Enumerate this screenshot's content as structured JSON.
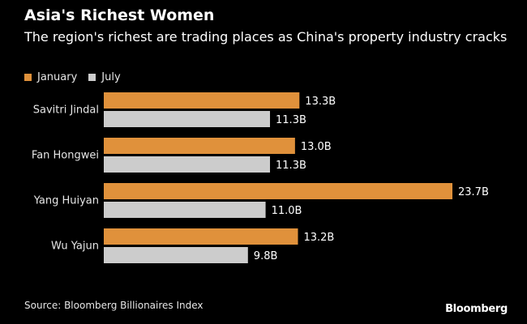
{
  "title": "Asia's Richest Women",
  "subtitle": "The region's richest are trading places as China's property industry cracks",
  "source": "Source: Bloomberg Billionaires Index",
  "brand": "Bloomberg",
  "colors": {
    "background": "#000000",
    "january": "#e0913b",
    "july": "#cccccc",
    "text": "#ffffff"
  },
  "chart_data": {
    "type": "bar",
    "orientation": "horizontal",
    "title": "Asia's Richest Women",
    "subtitle": "The region's richest are trading places as China's property industry cracks",
    "categories": [
      "Savitri Jindal",
      "Fan Hongwei",
      "Yang Huiyan",
      "Wu Yajun"
    ],
    "series": [
      {
        "name": "January",
        "values": [
          13.3,
          13.0,
          23.7,
          13.2
        ],
        "labels": [
          "13.3B",
          "13.0B",
          "23.7B",
          "13.2B"
        ]
      },
      {
        "name": "July",
        "values": [
          11.3,
          11.3,
          11.0,
          9.8
        ],
        "labels": [
          "11.3B",
          "11.3B",
          "11.0B",
          "9.8B"
        ]
      }
    ],
    "xlim": [
      0,
      23.7
    ],
    "grid": false,
    "legend_position": "top-left"
  }
}
